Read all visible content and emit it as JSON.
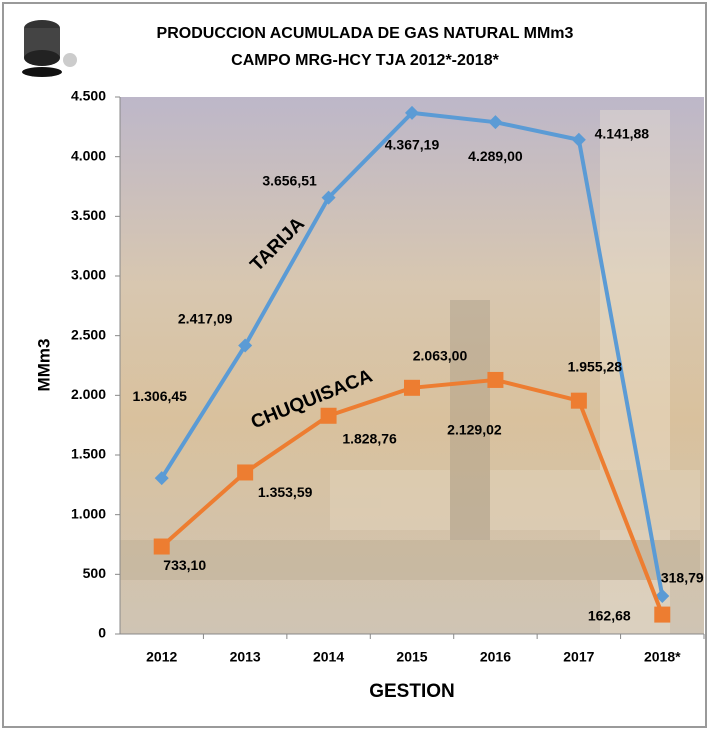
{
  "chart_data": {
    "type": "line",
    "title": "PRODUCCION ACUMULADA DE GAS NATURAL MMm3",
    "subtitle": "CAMPO MRG-HCY TJA 2012*-2018*",
    "x_label": "GESTION",
    "y_label": "MMm3",
    "categories": [
      "2012",
      "2013",
      "2014",
      "2015",
      "2016",
      "2017",
      "2018*"
    ],
    "series": [
      {
        "name": "TARIJA",
        "color": "#5b9bd5",
        "marker": "diamond",
        "values": [
          1306.45,
          2417.09,
          3656.51,
          4367.19,
          4289.0,
          4141.88,
          318.79
        ],
        "value_labels": [
          "1.306,45",
          "2.417,09",
          "3.656,51",
          "4.367,19",
          "4.289,00",
          "4.141,88",
          "318,79"
        ]
      },
      {
        "name": "CHUQUISACA",
        "color": "#ed7d31",
        "marker": "square",
        "values": [
          733.1,
          1353.59,
          1828.76,
          2063.0,
          2129.02,
          1955.28,
          162.68
        ],
        "value_labels": [
          "733,10",
          "1.353,59",
          "1.828,76",
          "2.063,00",
          "2.129,02",
          "1.955,28",
          "162,68"
        ]
      }
    ],
    "ylim": [
      0,
      4500
    ],
    "yticks": [
      0,
      500,
      {
        "value": 1000,
        "label": "1.000"
      },
      {
        "value": 1500,
        "label": "1.500"
      },
      {
        "value": 2000,
        "label": "2.000"
      },
      {
        "value": 2500,
        "label": "2.500"
      },
      {
        "value": 3000,
        "label": "3.000"
      },
      {
        "value": 3500,
        "label": "3.500"
      },
      {
        "value": 4000,
        "label": "4.000"
      },
      {
        "value": 4500,
        "label": "4.500"
      }
    ],
    "grid": false
  }
}
